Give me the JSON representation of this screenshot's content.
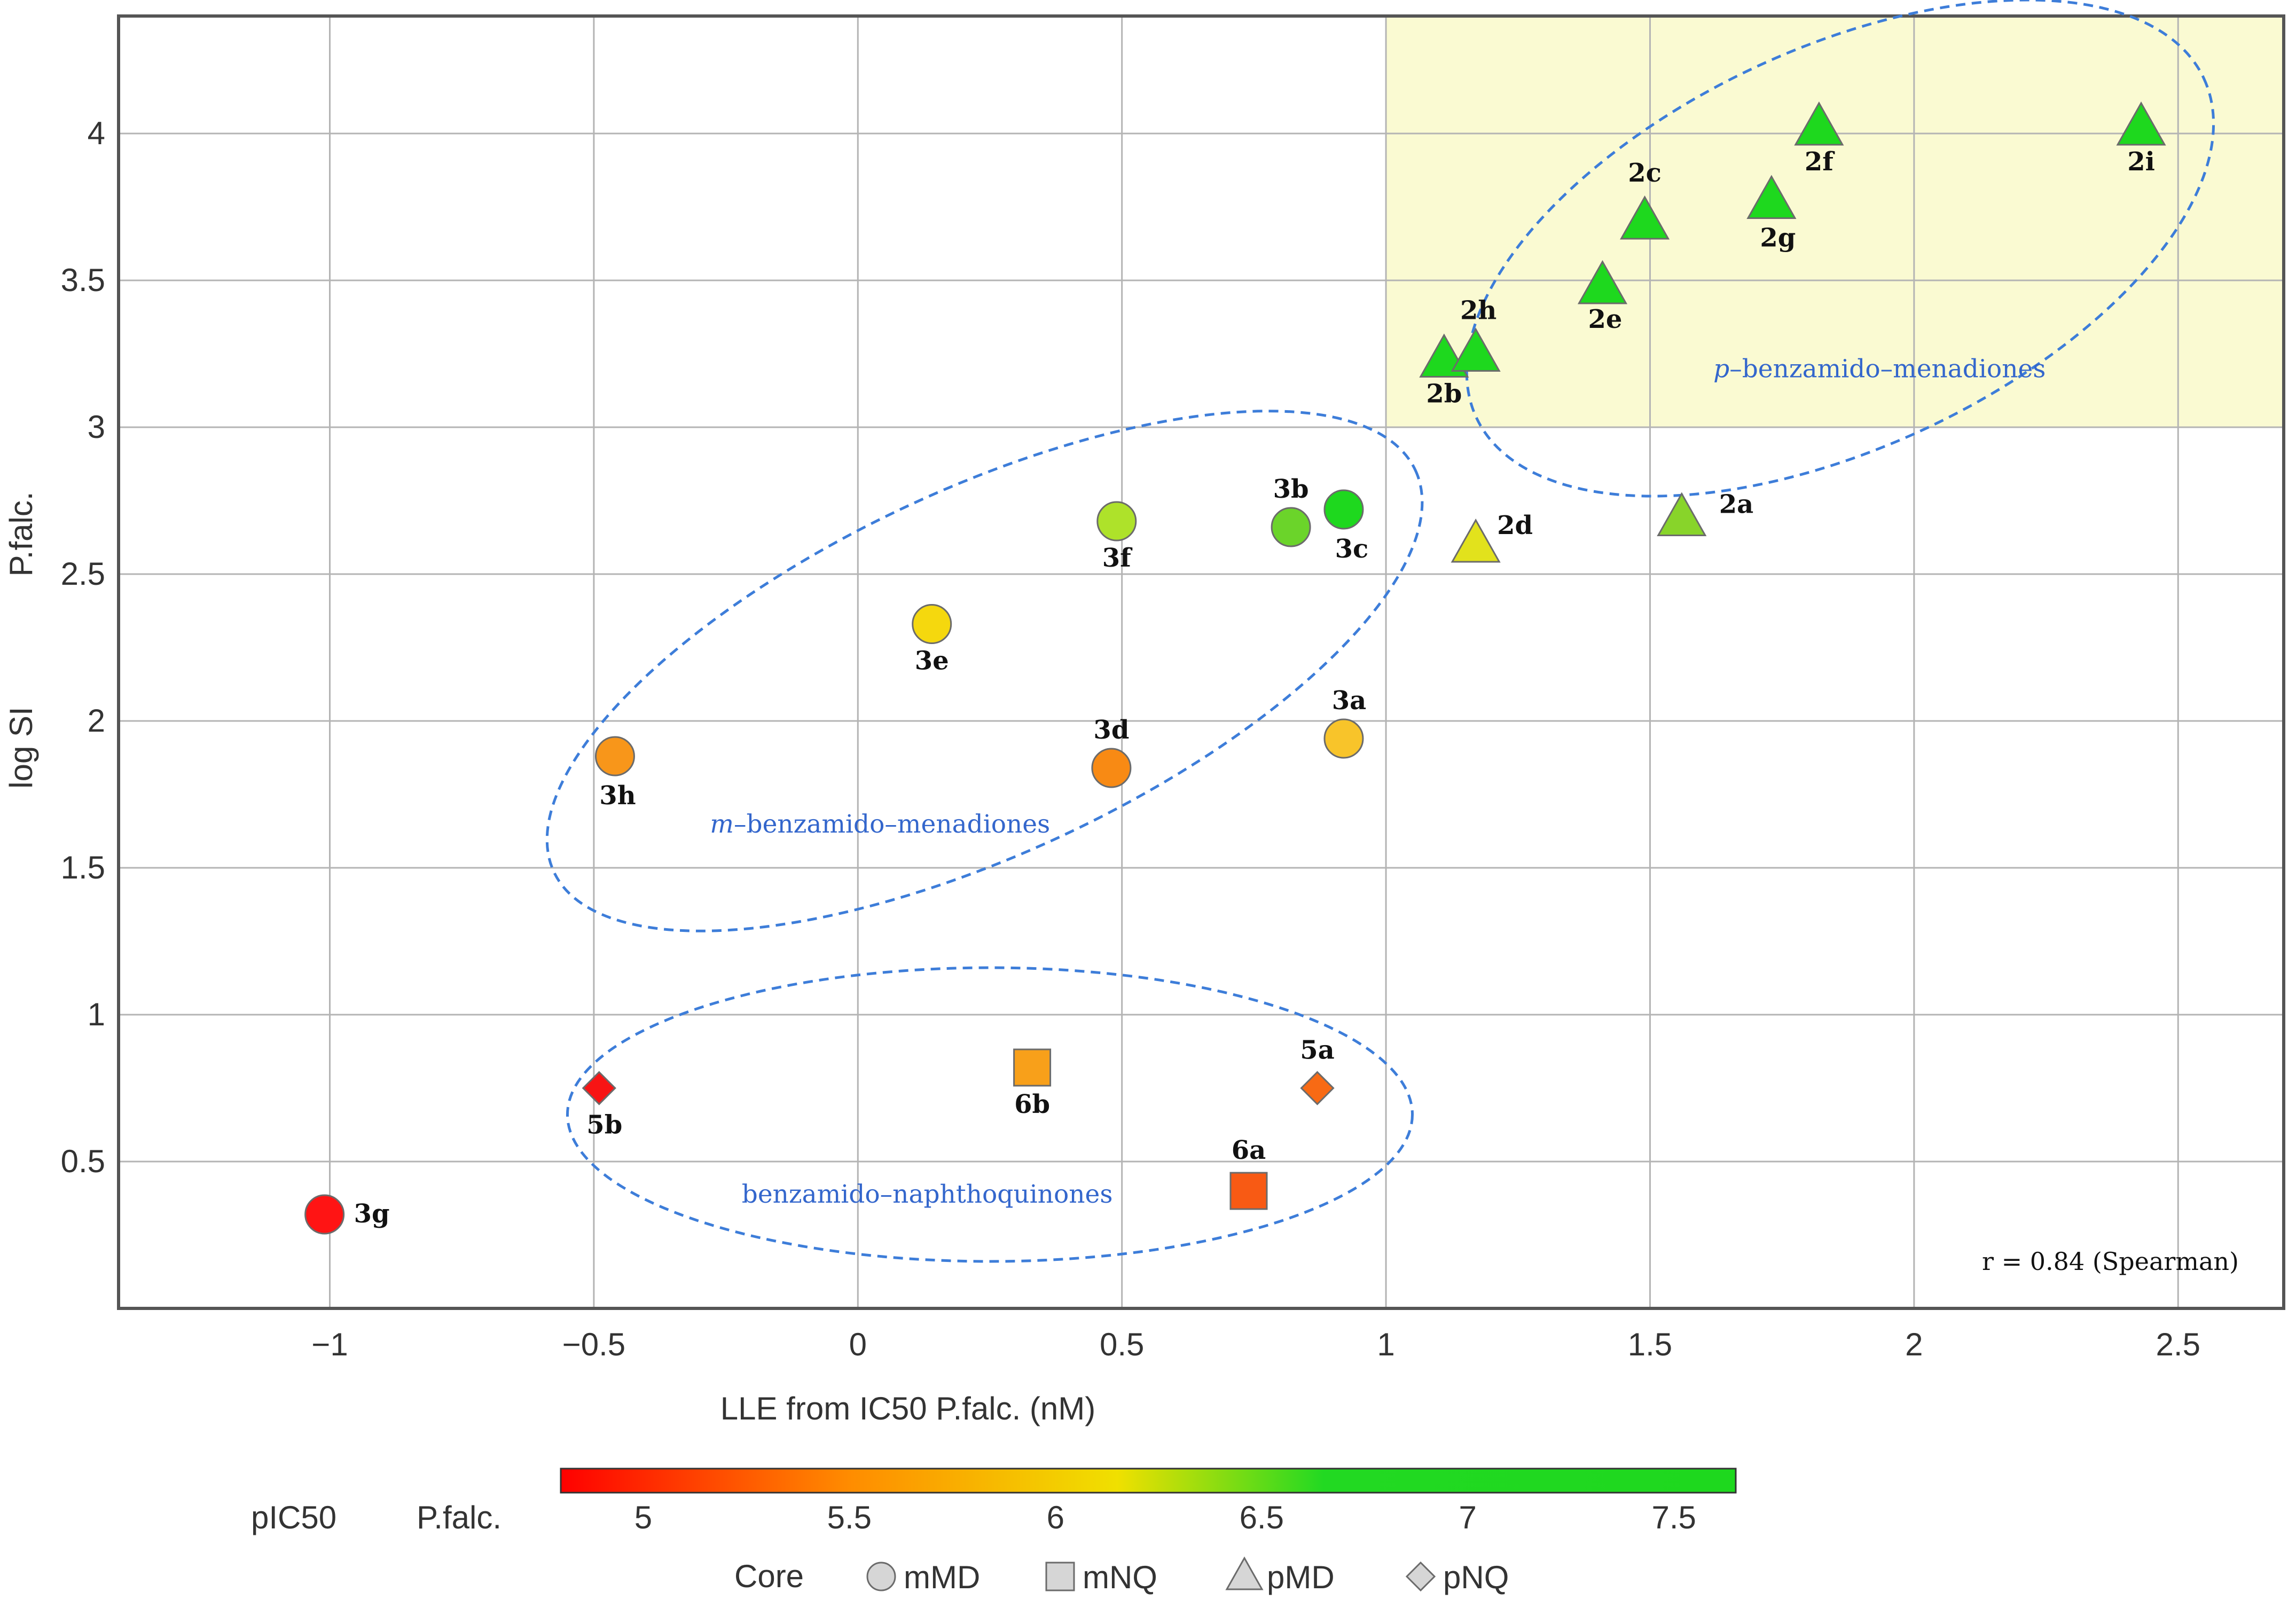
{
  "chart_data": {
    "type": "scatter",
    "xlabel": "LLE from IC50 P.falc. (nM)",
    "ylabel": "log SI",
    "ylabel_secondary": "P.falc.",
    "xlim": [
      -1.4,
      2.7
    ],
    "ylim": [
      0,
      4.4
    ],
    "x_ticks": [
      -1,
      -0.5,
      0,
      0.5,
      1,
      1.5,
      2,
      2.5
    ],
    "y_ticks": [
      0.5,
      1,
      1.5,
      2,
      2.5,
      3,
      3.5,
      4
    ],
    "grid": true,
    "highlight_region": {
      "x_min": 1,
      "x_max": 2.7,
      "y_min": 3,
      "y_max": 4.4,
      "color": "#fafad2"
    },
    "points": [
      {
        "label": "2a",
        "x": 1.56,
        "y": 2.69,
        "core": "pMD",
        "pIC50": 6.65,
        "color": "#88d42a"
      },
      {
        "label": "2b",
        "x": 1.11,
        "y": 3.23,
        "core": "pMD",
        "pIC50": 7.6,
        "color": "#1ed81e"
      },
      {
        "label": "2c",
        "x": 1.49,
        "y": 3.7,
        "core": "pMD",
        "pIC50": 7.6,
        "color": "#1ed81e"
      },
      {
        "label": "2d",
        "x": 1.17,
        "y": 2.6,
        "core": "pMD",
        "pIC50": 6.2,
        "color": "#e2e21c"
      },
      {
        "label": "2e",
        "x": 1.41,
        "y": 3.48,
        "core": "pMD",
        "pIC50": 7.6,
        "color": "#1ed81e"
      },
      {
        "label": "2f",
        "x": 1.82,
        "y": 4.02,
        "core": "pMD",
        "pIC50": 7.6,
        "color": "#1ed81e"
      },
      {
        "label": "2g",
        "x": 1.73,
        "y": 3.77,
        "core": "pMD",
        "pIC50": 7.6,
        "color": "#1ed81e"
      },
      {
        "label": "2h",
        "x": 1.17,
        "y": 3.25,
        "core": "pMD",
        "pIC50": 7.6,
        "color": "#1ed81e"
      },
      {
        "label": "2i",
        "x": 2.43,
        "y": 4.02,
        "core": "pMD",
        "pIC50": 7.6,
        "color": "#1ed81e"
      },
      {
        "label": "3a",
        "x": 0.92,
        "y": 1.94,
        "core": "mMD",
        "pIC50": 5.9,
        "color": "#f8c42a"
      },
      {
        "label": "3b",
        "x": 0.82,
        "y": 2.66,
        "core": "mMD",
        "pIC50": 6.8,
        "color": "#6bd42a"
      },
      {
        "label": "3c",
        "x": 0.92,
        "y": 2.72,
        "core": "mMD",
        "pIC50": 7.6,
        "color": "#1ed81e"
      },
      {
        "label": "3d",
        "x": 0.48,
        "y": 1.84,
        "core": "mMD",
        "pIC50": 5.5,
        "color": "#f88a14"
      },
      {
        "label": "3e",
        "x": 0.14,
        "y": 2.33,
        "core": "mMD",
        "pIC50": 6.05,
        "color": "#f5d80e"
      },
      {
        "label": "3f",
        "x": 0.49,
        "y": 2.68,
        "core": "mMD",
        "pIC50": 6.5,
        "color": "#aee22a"
      },
      {
        "label": "3g",
        "x": -1.01,
        "y": 0.32,
        "core": "mMD",
        "pIC50": 4.8,
        "color": "#ff1414"
      },
      {
        "label": "3h",
        "x": -0.46,
        "y": 1.88,
        "core": "mMD",
        "pIC50": 5.6,
        "color": "#f8961a"
      },
      {
        "label": "5a",
        "x": 0.87,
        "y": 0.75,
        "core": "pNQ",
        "pIC50": 5.3,
        "color": "#f86a14"
      },
      {
        "label": "5b",
        "x": -0.49,
        "y": 0.75,
        "core": "pNQ",
        "pIC50": 4.8,
        "color": "#f81414"
      },
      {
        "label": "6a",
        "x": 0.74,
        "y": 0.4,
        "core": "mNQ",
        "pIC50": 5.2,
        "color": "#f85a14"
      },
      {
        "label": "6b",
        "x": 0.33,
        "y": 0.82,
        "core": "mNQ",
        "pIC50": 5.8,
        "color": "#f8a01a"
      }
    ],
    "groups": [
      {
        "label_prefix": "p",
        "label_rest": "–benzamido–menadiones",
        "cx": 1.86,
        "cy": 3.61,
        "rx": 0.76,
        "ry": 0.68,
        "angle": -25
      },
      {
        "label_prefix": "m",
        "label_rest": "–benzamido–menadiones",
        "cx": 0.24,
        "cy": 2.17,
        "rx": 0.9,
        "ry": 0.62,
        "angle": -25
      },
      {
        "label_prefix": "",
        "label_rest": "benzamido–naphthoquinones",
        "cx": 0.25,
        "cy": 0.66,
        "rx": 0.8,
        "ry": 0.5,
        "angle": 0
      }
    ],
    "annotation": "r = 0.84 (Spearman)",
    "colorbar": {
      "title": "pIC50",
      "subtitle": "P.falc.",
      "min": 4.8,
      "max": 7.65,
      "ticks": [
        5,
        5.5,
        6,
        6.5,
        7,
        7.5
      ],
      "stops": [
        {
          "v": 4.8,
          "color": "#ff0000"
        },
        {
          "v": 5.5,
          "color": "#ff8c00"
        },
        {
          "v": 6.15,
          "color": "#f0e000"
        },
        {
          "v": 6.65,
          "color": "#22d922"
        },
        {
          "v": 7.65,
          "color": "#1ed81e"
        }
      ]
    },
    "legend": {
      "title": "Core",
      "items": [
        {
          "label": "mMD",
          "shape": "circle"
        },
        {
          "label": "mNQ",
          "shape": "square"
        },
        {
          "label": "pMD",
          "shape": "triangle"
        },
        {
          "label": "pNQ",
          "shape": "diamond"
        }
      ]
    }
  }
}
